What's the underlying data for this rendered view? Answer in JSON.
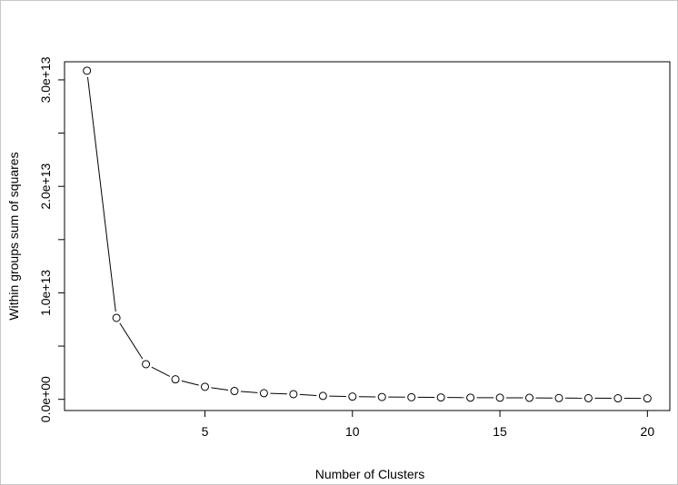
{
  "chart_data": {
    "type": "line",
    "title": "",
    "xlabel": "Number of Clusters",
    "ylabel": "Within groups sum of squares",
    "x": [
      1,
      2,
      3,
      4,
      5,
      6,
      7,
      8,
      9,
      10,
      11,
      12,
      13,
      14,
      15,
      16,
      17,
      18,
      19,
      20
    ],
    "values": [
      30860000000000.0,
      7650000000000.0,
      3300000000000.0,
      1880000000000.0,
      1180000000000.0,
      780000000000.0,
      580000000000.0,
      490000000000.0,
      320000000000.0,
      260000000000.0,
      220000000000.0,
      200000000000.0,
      180000000000.0,
      160000000000.0,
      150000000000.0,
      140000000000.0,
      120000000000.0,
      110000000000.0,
      100000000000.0,
      90000000000.0
    ],
    "xlim": [
      0.24,
      20.76
    ],
    "ylim": [
      -1050000000000.0,
      31700000000000.0
    ],
    "x_ticks": [
      {
        "value": 5,
        "label": "5"
      },
      {
        "value": 10,
        "label": "10"
      },
      {
        "value": 15,
        "label": "15"
      },
      {
        "value": 20,
        "label": "20"
      }
    ],
    "y_ticks": [
      {
        "value": 0,
        "label": "0.0e+00"
      },
      {
        "value": 5000000000000.0,
        "label": ""
      },
      {
        "value": 10000000000000.0,
        "label": "1.0e+13"
      },
      {
        "value": 15000000000000.0,
        "label": ""
      },
      {
        "value": 20000000000000.0,
        "label": "2.0e+13"
      },
      {
        "value": 25000000000000.0,
        "label": ""
      },
      {
        "value": 30000000000000.0,
        "label": "3.0e+13"
      }
    ],
    "marker": "open-circle",
    "line_style": "solid",
    "grid": false,
    "colors": {
      "line": "#000000",
      "frame": "#c8c8c8"
    }
  }
}
